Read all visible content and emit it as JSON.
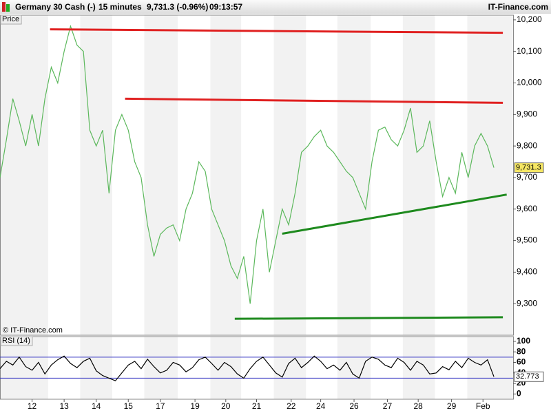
{
  "header": {
    "instrument": "Germany 30 Cash (-)",
    "interval": "15 minutes",
    "quote": "9,731.3 (-0.96%)",
    "time": "09:13:57",
    "site": "IT-Finance.com",
    "copyright": "© IT-Finance.com"
  },
  "chart_data": [
    {
      "type": "line",
      "title": "Price",
      "last_label": "9,731.3",
      "x": [
        0,
        1,
        2,
        3,
        4,
        5,
        6,
        7,
        8,
        9,
        10,
        11,
        12,
        13,
        14,
        15,
        16,
        17,
        18,
        19,
        20,
        21,
        22,
        23,
        24,
        25,
        26,
        27,
        28,
        29,
        30,
        31,
        32,
        33,
        34,
        35,
        36,
        37,
        38,
        39,
        40,
        41,
        42,
        43,
        44,
        45,
        46,
        47,
        48,
        49,
        50,
        51,
        52,
        53,
        54,
        55,
        56,
        57,
        58,
        59,
        60,
        61,
        62,
        63,
        64,
        65,
        66,
        67,
        68,
        69,
        70,
        71,
        72,
        73,
        74,
        75,
        76,
        77
      ],
      "series": [
        {
          "color": "#5cb85c",
          "values": [
            9700,
            9820,
            9950,
            9880,
            9800,
            9900,
            9800,
            9950,
            10050,
            10000,
            10100,
            10180,
            10120,
            10100,
            9850,
            9800,
            9850,
            9650,
            9850,
            9900,
            9850,
            9750,
            9700,
            9550,
            9450,
            9520,
            9540,
            9550,
            9500,
            9600,
            9650,
            9750,
            9720,
            9600,
            9550,
            9500,
            9420,
            9380,
            9450,
            9300,
            9500,
            9600,
            9400,
            9500,
            9600,
            9550,
            9650,
            9780,
            9800,
            9830,
            9850,
            9800,
            9780,
            9750,
            9720,
            9700,
            9650,
            9600,
            9750,
            9850,
            9860,
            9820,
            9800,
            9850,
            9920,
            9780,
            9800,
            9880,
            9750,
            9640,
            9700,
            9650,
            9780,
            9700,
            9800,
            9840,
            9800,
            9731.3
          ]
        }
      ],
      "trendlines": [
        {
          "color": "#e02020",
          "x": [
            7.8,
            78.4
          ],
          "y": [
            10170,
            10159
          ]
        },
        {
          "color": "#e02020",
          "x": [
            19.5,
            78.4
          ],
          "y": [
            9950,
            9937
          ]
        },
        {
          "color": "#1e8a1e",
          "x": [
            44,
            79
          ],
          "y": [
            9522,
            9646
          ]
        },
        {
          "color": "#1e8a1e",
          "x": [
            36.6,
            78.4
          ],
          "y": [
            9252,
            9257
          ]
        }
      ],
      "xlim": [
        0,
        80
      ],
      "ylim": [
        9200,
        10215
      ],
      "yticks": [
        {
          "value": 9300,
          "label": "9,300"
        },
        {
          "value": 9400,
          "label": "9,400"
        },
        {
          "value": 9500,
          "label": "9,500"
        },
        {
          "value": 9600,
          "label": "9,600"
        },
        {
          "value": 9700,
          "label": "9,700"
        },
        {
          "value": 9800,
          "label": "9,800"
        },
        {
          "value": 9900,
          "label": "9,900"
        },
        {
          "value": 10000,
          "label": "10,000"
        },
        {
          "value": 10100,
          "label": "10,100"
        },
        {
          "value": 10200,
          "label": "10,200"
        }
      ]
    },
    {
      "type": "line",
      "title": "RSI (14)",
      "last_label": "32.773",
      "x": [
        0,
        1,
        2,
        3,
        4,
        5,
        6,
        7,
        8,
        9,
        10,
        11,
        12,
        13,
        14,
        15,
        16,
        17,
        18,
        19,
        20,
        21,
        22,
        23,
        24,
        25,
        26,
        27,
        28,
        29,
        30,
        31,
        32,
        33,
        34,
        35,
        36,
        37,
        38,
        39,
        40,
        41,
        42,
        43,
        44,
        45,
        46,
        47,
        48,
        49,
        50,
        51,
        52,
        53,
        54,
        55,
        56,
        57,
        58,
        59,
        60,
        61,
        62,
        63,
        64,
        65,
        66,
        67,
        68,
        69,
        70,
        71,
        72,
        73,
        74,
        75,
        76,
        77
      ],
      "series": [
        {
          "color": "#000000",
          "values": [
            48,
            62,
            55,
            70,
            52,
            45,
            60,
            38,
            55,
            65,
            72,
            58,
            50,
            62,
            68,
            44,
            35,
            30,
            25,
            40,
            55,
            62,
            48,
            66,
            52,
            40,
            45,
            60,
            55,
            42,
            50,
            65,
            70,
            58,
            45,
            60,
            52,
            38,
            30,
            48,
            62,
            70,
            55,
            40,
            32,
            58,
            68,
            50,
            60,
            72,
            62,
            48,
            55,
            45,
            60,
            38,
            30,
            62,
            70,
            66,
            55,
            50,
            68,
            60,
            45,
            62,
            55,
            38,
            40,
            52,
            46,
            62,
            50,
            68,
            60,
            55,
            65,
            32.773
          ]
        }
      ],
      "levels": [
        70,
        30
      ],
      "level_color": "#3030c0",
      "xlim": [
        0,
        80
      ],
      "ylim": [
        -10,
        109
      ],
      "yticks": [
        0,
        20,
        40,
        60,
        80,
        100
      ],
      "xticks": [
        {
          "value": 5,
          "label": "12"
        },
        {
          "value": 10,
          "label": "13"
        },
        {
          "value": 15,
          "label": "14"
        },
        {
          "value": 20,
          "label": "15"
        },
        {
          "value": 25,
          "label": "17"
        },
        {
          "value": 30.4,
          "label": "19"
        },
        {
          "value": 35.2,
          "label": "20"
        },
        {
          "value": 40,
          "label": "21"
        },
        {
          "value": 45.4,
          "label": "22"
        },
        {
          "value": 50,
          "label": "24"
        },
        {
          "value": 55.2,
          "label": "26"
        },
        {
          "value": 60.4,
          "label": "27"
        },
        {
          "value": 65.2,
          "label": "28"
        },
        {
          "value": 70.4,
          "label": "29"
        },
        {
          "value": 75.3,
          "label": "Feb"
        }
      ]
    }
  ]
}
